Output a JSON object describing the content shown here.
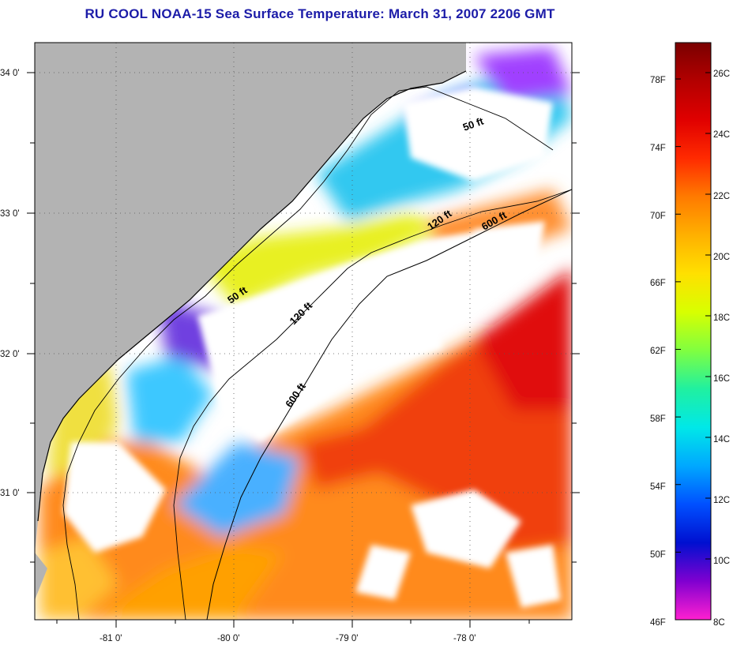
{
  "title": "RU COOL  NOAA-15  Sea Surface Temperature:  March 31, 2007 2206 GMT",
  "colors": {
    "land": "#b3b3b3",
    "cloud": "#ffffff",
    "frame": "#000000",
    "title": "#1c1ca8"
  },
  "lat_ticks": [
    "34 0'",
    "33 0'",
    "32 0'",
    "31 0'"
  ],
  "lon_ticks": [
    "-81 0'",
    "-80 0'",
    "-79 0'",
    "-78 0'"
  ],
  "isobath_labels": [
    "50 ft",
    "120 ft",
    "600 ft",
    "50 ft",
    "120 ft",
    "600 ft"
  ],
  "colorbar": {
    "fahrenheit_labels": [
      "78F",
      "74F",
      "70F",
      "66F",
      "62F",
      "58F",
      "54F",
      "50F",
      "46F"
    ],
    "celsius_labels": [
      "26C",
      "24C",
      "22C",
      "20C",
      "18C",
      "16C",
      "14C",
      "12C",
      "10C",
      "8C"
    ],
    "gradient": [
      "#7a0000",
      "#b30000",
      "#e00000",
      "#ff2a00",
      "#ff7a00",
      "#ffb000",
      "#ffe000",
      "#d8ff00",
      "#80ff40",
      "#20f0a0",
      "#00e8e8",
      "#00a8ff",
      "#0050ff",
      "#0010d0",
      "#8000d0",
      "#ff20d0"
    ]
  }
}
